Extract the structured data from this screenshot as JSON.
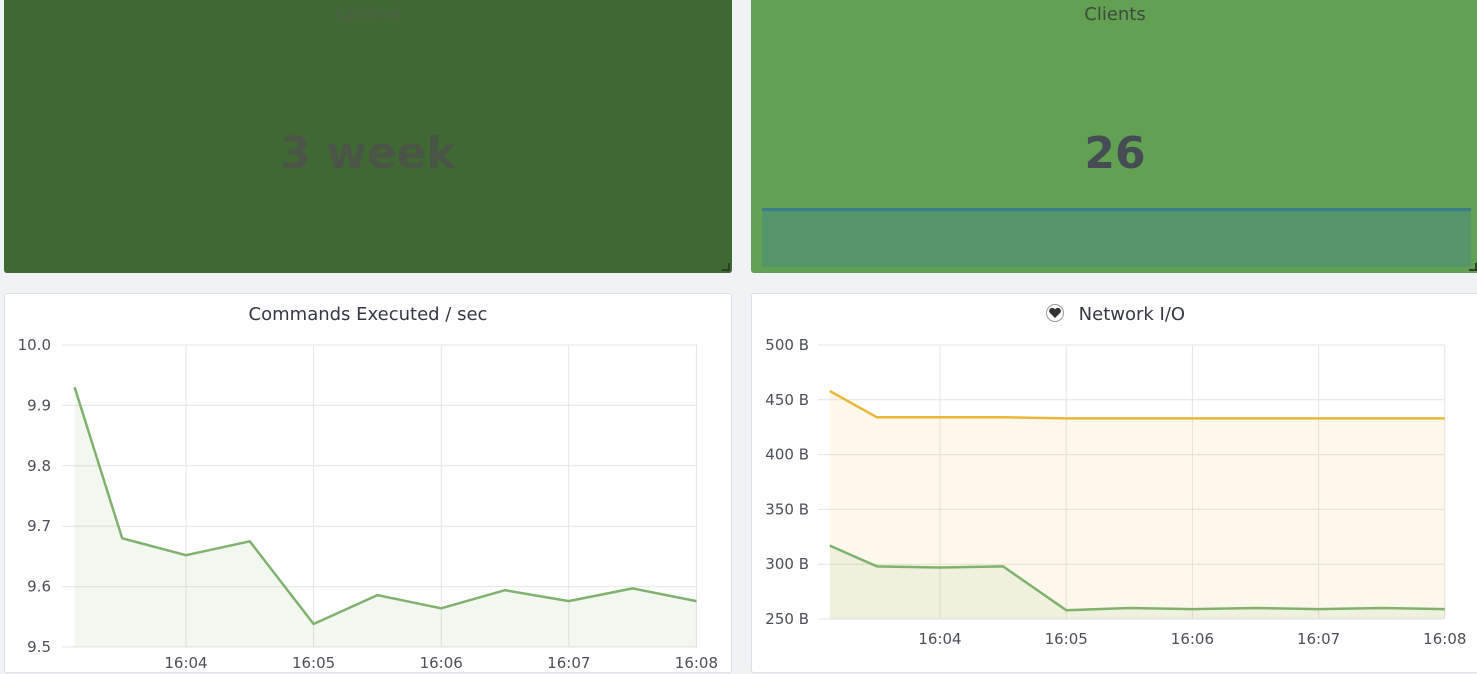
{
  "uptime_panel": {
    "title": "Uptime",
    "value": "3 week",
    "background": "#406833"
  },
  "clients_panel": {
    "title": "Clients",
    "value": "26",
    "background": "#62a052",
    "sparkline_color": "#3c7d8a"
  },
  "commands_panel": {
    "title": "Commands Executed / sec",
    "chart_data": {
      "type": "area",
      "x": [
        "16:03:08",
        "16:03:30",
        "16:04",
        "16:04:30",
        "16:05",
        "16:05:30",
        "16:06",
        "16:06:30",
        "16:07",
        "16:07:30",
        "16:08"
      ],
      "x_ticks": [
        "16:04",
        "16:05",
        "16:06",
        "16:07",
        "16:08"
      ],
      "y_ticks": [
        "10.0",
        "9.9",
        "9.8",
        "9.7",
        "9.6",
        "9.5"
      ],
      "ylim": [
        9.5,
        10.0
      ],
      "grid": true,
      "series": [
        {
          "color": "#7eb26d",
          "values": [
            9.93,
            9.68,
            9.652,
            9.675,
            9.538,
            9.586,
            9.564,
            9.594,
            9.576,
            9.597,
            9.576
          ]
        }
      ]
    }
  },
  "network_panel": {
    "title": "Network I/O",
    "icon": "heart-icon",
    "chart_data": {
      "type": "area",
      "x": [
        "16:03:08",
        "16:03:30",
        "16:04",
        "16:04:30",
        "16:05",
        "16:05:30",
        "16:06",
        "16:06:30",
        "16:07",
        "16:07:30",
        "16:08"
      ],
      "x_ticks": [
        "16:04",
        "16:05",
        "16:06",
        "16:07",
        "16:08"
      ],
      "y_ticks": [
        "500 B",
        "450 B",
        "400 B",
        "350 B",
        "300 B",
        "250 B"
      ],
      "ylim": [
        250,
        500
      ],
      "grid": true,
      "series": [
        {
          "color": "#eab839",
          "values": [
            458,
            434,
            434,
            434,
            433,
            433,
            433,
            433,
            433,
            433,
            433
          ]
        },
        {
          "color": "#7eb26d",
          "values": [
            317,
            298,
            297,
            298,
            258,
            260,
            259,
            260,
            259,
            260,
            259
          ]
        }
      ]
    }
  }
}
